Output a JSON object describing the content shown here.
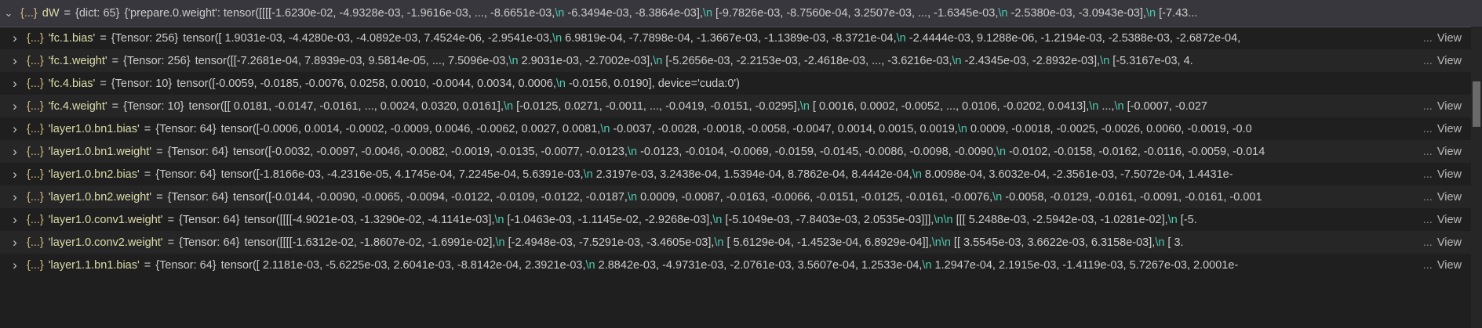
{
  "root": {
    "kind": "{...}",
    "name": "dW",
    "type": "{dict: 65}",
    "value": "{'prepare.0.weight': tensor([[[[-1.6230e-02, -4.9328e-03, -1.9616e-03,  ..., -8.6651e-03,\\n          -6.3494e-03, -8.3864e-03],\\n         [-9.7826e-03, -8.7560e-04,  3.2507e-03,  ..., -1.6345e-03,\\n          -2.5380e-03, -3.0943e-03],\\n         [-7.43..."
  },
  "items": [
    {
      "kind": "{...}",
      "key": "'fc.1.bias'",
      "type": "{Tensor: 256}",
      "value": "tensor([ 1.9031e-03, -4.4280e-03, -4.0892e-03,  7.4524e-06, -2.9541e-03,\\n         6.9819e-04, -7.7898e-04, -1.3667e-03, -1.1389e-03, -8.3721e-04,\\n        -2.4444e-03,  9.1288e-06, -1.2194e-03, -2.5388e-03, -2.6872e-04,",
      "view": "View"
    },
    {
      "kind": "{...}",
      "key": "'fc.1.weight'",
      "type": "{Tensor: 256}",
      "value": "tensor([[-7.2681e-04,  7.8939e-03,  9.5814e-05,  ...,  7.5096e-03,\\n          2.9031e-03, -2.7002e-03],\\n        [-5.2656e-03, -2.2153e-03, -2.4618e-03,  ..., -3.6216e-03,\\n         -2.4345e-03, -2.8932e-03],\\n        [-5.3167e-03,  4.",
      "view": "View"
    },
    {
      "kind": "{...}",
      "key": "'fc.4.bias'",
      "type": "{Tensor: 10}",
      "value": "tensor([-0.0059, -0.0185, -0.0076,  0.0258,  0.0010, -0.0044,  0.0034,  0.0006,\\n        -0.0156,  0.0190], device='cuda:0')",
      "view": ""
    },
    {
      "kind": "{...}",
      "key": "'fc.4.weight'",
      "type": "{Tensor: 10}",
      "value": "tensor([[ 0.0181, -0.0147, -0.0161,  ...,  0.0024,  0.0320,  0.0161],\\n        [-0.0125,  0.0271, -0.0011,  ..., -0.0419, -0.0151, -0.0295],\\n        [ 0.0016,  0.0002, -0.0052,  ...,  0.0106, -0.0202,  0.0413],\\n        ...,\\n        [-0.0007, -0.027",
      "view": "View"
    },
    {
      "kind": "{...}",
      "key": "'layer1.0.bn1.bias'",
      "type": "{Tensor: 64}",
      "value": "tensor([-0.0006,  0.0014, -0.0002, -0.0009,  0.0046, -0.0062,  0.0027,  0.0081,\\n        -0.0037, -0.0028, -0.0018, -0.0058, -0.0047,  0.0014,  0.0015,  0.0019,\\n         0.0009, -0.0018, -0.0025, -0.0026,  0.0060, -0.0019, -0.0",
      "view": "View"
    },
    {
      "kind": "{...}",
      "key": "'layer1.0.bn1.weight'",
      "type": "{Tensor: 64}",
      "value": "tensor([-0.0032, -0.0097, -0.0046, -0.0082, -0.0019, -0.0135, -0.0077, -0.0123,\\n        -0.0123, -0.0104, -0.0069, -0.0159, -0.0145, -0.0086, -0.0098, -0.0090,\\n        -0.0102, -0.0158, -0.0162, -0.0116, -0.0059, -0.014",
      "view": "View"
    },
    {
      "kind": "{...}",
      "key": "'layer1.0.bn2.bias'",
      "type": "{Tensor: 64}",
      "value": "tensor([-1.8166e-03, -4.2316e-05,  4.1745e-04,  7.2245e-04,  5.6391e-03,\\n         2.3197e-03,  3.2438e-04,  1.5394e-04,  8.7862e-04,  8.4442e-04,\\n         8.0098e-04,  3.6032e-04, -2.3561e-03, -7.5072e-04,  1.4431e-",
      "view": "View"
    },
    {
      "kind": "{...}",
      "key": "'layer1.0.bn2.weight'",
      "type": "{Tensor: 64}",
      "value": "tensor([-0.0144, -0.0090, -0.0065, -0.0094, -0.0122, -0.0109, -0.0122, -0.0187,\\n         0.0009, -0.0087, -0.0163, -0.0066, -0.0151, -0.0125, -0.0161, -0.0076,\\n        -0.0058, -0.0129, -0.0161, -0.0091, -0.0161, -0.001",
      "view": "View"
    },
    {
      "kind": "{...}",
      "key": "'layer1.0.conv1.weight'",
      "type": "{Tensor: 64}",
      "value": "tensor([[[[-4.9021e-03, -1.3290e-02, -4.1141e-03],\\n          [-1.0463e-03, -1.1145e-02, -2.9268e-03],\\n          [-5.1049e-03, -7.8403e-03,  2.0535e-03]]],\\n\\n        [[[ 5.2488e-03, -2.5942e-03, -1.0281e-02],\\n          [-5.",
      "view": "View"
    },
    {
      "kind": "{...}",
      "key": "'layer1.0.conv2.weight'",
      "type": "{Tensor: 64}",
      "value": "tensor([[[[-1.6312e-02, -1.8607e-02, -1.6991e-02],\\n          [-2.4948e-03, -7.5291e-03, -3.4605e-03],\\n          [ 5.6129e-04, -1.4523e-04,  6.8929e-04]],\\n\\n         [[ 3.5545e-03,  3.6622e-03,  6.3158e-03],\\n          [ 3.",
      "view": "View"
    },
    {
      "kind": "{...}",
      "key": "'layer1.1.bn1.bias'",
      "type": "{Tensor: 64}",
      "value": "tensor([ 2.1181e-03, -5.6225e-03,  2.6041e-03, -8.8142e-04,  2.3921e-03,\\n         2.8842e-03, -4.9731e-03, -2.0761e-03,  3.5607e-04,  1.2533e-04,\\n         1.2947e-04,  2.1915e-03, -1.4119e-03,  5.7267e-03,  2.0001e-",
      "view": "View"
    }
  ],
  "more_label": "...",
  "colors": {
    "background": "#1f1f1f",
    "key": "#dcdcaa",
    "newline": "#4ec9b0",
    "root_row": "#37373d"
  },
  "icons": {
    "row_collapsed": "chevron-right-icon",
    "row_expanded": "chevron-down-icon"
  }
}
